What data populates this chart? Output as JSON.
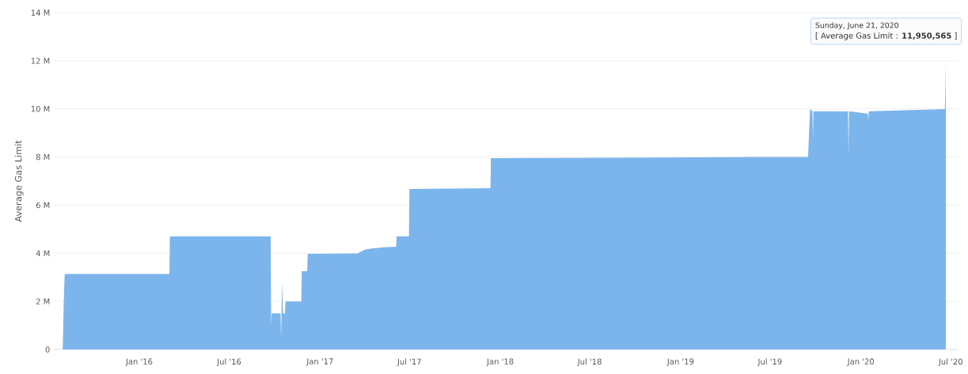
{
  "chart_data": {
    "type": "area",
    "ylabel": "Average Gas Limit",
    "color": "#7cb5ec",
    "grid": "y",
    "xlim": [
      "2015-07-12",
      "2020-07-15"
    ],
    "ylim": [
      0,
      14000000
    ],
    "xticks": [
      {
        "value": "2016-01-01",
        "label": "Jan '16"
      },
      {
        "value": "2016-07-01",
        "label": "Jul '16"
      },
      {
        "value": "2017-01-01",
        "label": "Jan '17"
      },
      {
        "value": "2017-07-01",
        "label": "Jul '17"
      },
      {
        "value": "2018-01-01",
        "label": "Jan '18"
      },
      {
        "value": "2018-07-01",
        "label": "Jul '18"
      },
      {
        "value": "2019-01-01",
        "label": "Jan '19"
      },
      {
        "value": "2019-07-01",
        "label": "Jul '19"
      },
      {
        "value": "2020-01-01",
        "label": "Jan '20"
      },
      {
        "value": "2020-07-01",
        "label": "Jul '20"
      }
    ],
    "yticks": [
      0,
      {
        "value": 2000000,
        "label": "2 M"
      },
      {
        "value": 4000000,
        "label": "4 M"
      },
      {
        "value": 6000000,
        "label": "6 M"
      },
      {
        "value": 8000000,
        "label": "8 M"
      },
      {
        "value": 10000000,
        "label": "10 M"
      },
      {
        "value": 12000000,
        "label": "12 M"
      },
      {
        "value": 14000000,
        "label": "14 M"
      }
    ],
    "x": [
      "2015-07-30",
      "2015-08-01",
      "2015-08-03",
      "2016-03-02",
      "2016-03-03",
      "2016-09-23",
      "2016-09-24",
      "2016-09-25",
      "2016-10-13",
      "2016-10-14",
      "2016-10-16",
      "2016-10-18",
      "2016-10-22",
      "2016-10-23",
      "2016-11-24",
      "2016-11-25",
      "2016-12-06",
      "2016-12-07",
      "2017-03-18",
      "2017-04-01",
      "2017-04-16",
      "2017-05-10",
      "2017-06-04",
      "2017-06-05",
      "2017-06-30",
      "2017-07-01",
      "2017-12-12",
      "2017-12-13",
      "2019-05-10",
      "2019-05-11",
      "2019-09-16",
      "2019-09-18",
      "2019-09-20",
      "2019-09-25",
      "2019-09-26",
      "2019-09-27",
      "2019-12-06",
      "2019-12-07",
      "2019-12-08",
      "2020-01-15",
      "2020-01-16",
      "2020-01-17",
      "2020-06-19",
      "2020-06-20",
      "2020-06-21"
    ],
    "values": [
      0,
      1900000,
      3140000,
      3140000,
      4700000,
      4700000,
      1000000,
      1500000,
      1500000,
      460000,
      2800000,
      1500000,
      1500000,
      2000000,
      2000000,
      3250000,
      3250000,
      3980000,
      3990000,
      4150000,
      4200000,
      4250000,
      4270000,
      4700000,
      4700000,
      6670000,
      6700000,
      7950000,
      7990000,
      8000000,
      8000000,
      9000000,
      9990000,
      9900000,
      8800000,
      9900000,
      9900000,
      8100000,
      9900000,
      9800000,
      9500000,
      9900000,
      9990000,
      10700000,
      11950565
    ],
    "annotations": [
      "Sunday, June 21, 2020",
      "[ Average Gas Limit : **11,950,565** ]"
    ]
  }
}
